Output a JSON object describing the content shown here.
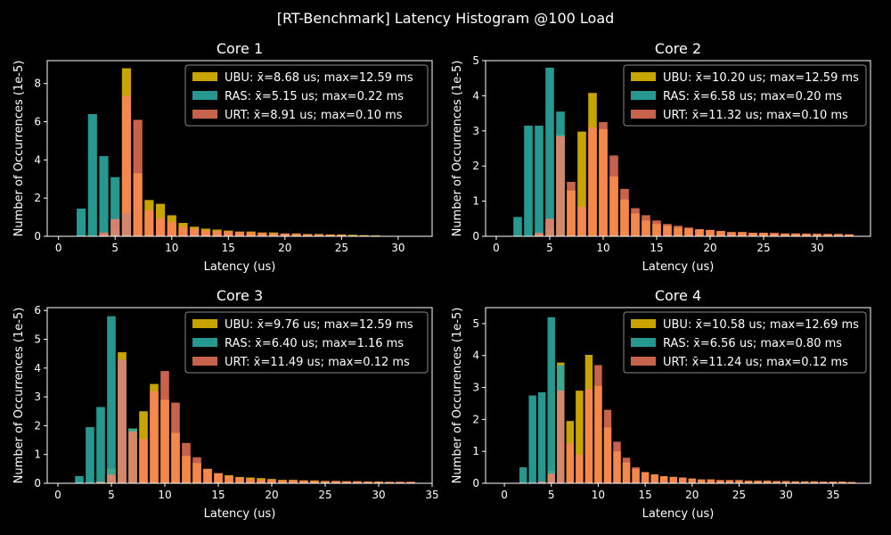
{
  "figure": {
    "title": "[RT-Benchmark] Latency Histogram @100 Load",
    "background": "#000000",
    "colors": {
      "UBU": "#c8a400",
      "RAS": "#2ba89e",
      "URT": "#ff7f61"
    }
  },
  "chart_data": [
    {
      "type": "bar",
      "title": "Core 1",
      "xlabel": "Latency (us)",
      "ylabel": "Number of Occurrences (1e-5)",
      "xlim": [
        -1,
        33
      ],
      "ylim": [
        0,
        9.2
      ],
      "xticks": [
        0,
        5,
        10,
        15,
        20,
        25,
        30
      ],
      "yticks": [
        0,
        2,
        4,
        6,
        8
      ],
      "legend_position": "top-right",
      "series": [
        {
          "name": "UBU: x̄=8.68 us; max=12.59 ms",
          "x": [
            4,
            5,
            6,
            7,
            8,
            9,
            10,
            11,
            12,
            13,
            14,
            15,
            16,
            17,
            18,
            19,
            20,
            21,
            22,
            23,
            24,
            25,
            26,
            27,
            28
          ],
          "values": [
            0.1,
            0.3,
            8.8,
            3.3,
            1.9,
            1.7,
            1.1,
            0.7,
            0.5,
            0.4,
            0.35,
            0.3,
            0.25,
            0.25,
            0.2,
            0.2,
            0.15,
            0.15,
            0.12,
            0.12,
            0.1,
            0.1,
            0.08,
            0.06,
            0.05
          ]
        },
        {
          "name": "RAS: x̄=5.15 us; max=0.22 ms",
          "x": [
            2,
            3,
            4,
            5,
            6
          ],
          "values": [
            1.45,
            6.4,
            4.2,
            3.1,
            1.2
          ]
        },
        {
          "name": "URT: x̄=8.91 us; max=0.10 ms",
          "x": [
            4,
            5,
            6,
            7,
            8,
            9,
            10,
            11,
            12,
            13,
            14,
            15,
            16,
            17,
            18,
            19,
            20,
            21,
            22,
            23,
            24,
            25
          ],
          "values": [
            0.2,
            0.9,
            7.35,
            6.1,
            1.35,
            0.95,
            0.75,
            0.5,
            0.38,
            0.3,
            0.28,
            0.25,
            0.22,
            0.2,
            0.18,
            0.15,
            0.14,
            0.12,
            0.1,
            0.09,
            0.08,
            0.07
          ]
        }
      ]
    },
    {
      "type": "bar",
      "title": "Core 2",
      "xlabel": "Latency (us)",
      "ylabel": "Number of Occurrences (1e-5)",
      "xlim": [
        -1,
        35
      ],
      "ylim": [
        0,
        5
      ],
      "xticks": [
        0,
        5,
        10,
        15,
        20,
        25,
        30
      ],
      "yticks": [
        0,
        1,
        2,
        3,
        4,
        5
      ],
      "legend_position": "top-right",
      "series": [
        {
          "name": "UBU: x̄=10.20 us; max=12.59 ms",
          "x": [
            4,
            5,
            6,
            7,
            8,
            9,
            10,
            11,
            12,
            13,
            14,
            15,
            16,
            17,
            18,
            19,
            20,
            21,
            22,
            23,
            24,
            25,
            26,
            27,
            28,
            29,
            30,
            31,
            32,
            33
          ],
          "values": [
            0.05,
            0.2,
            2.9,
            1.3,
            2.98,
            4.08,
            3.05,
            1.7,
            1.05,
            0.65,
            0.45,
            0.35,
            0.3,
            0.25,
            0.22,
            0.2,
            0.18,
            0.15,
            0.12,
            0.12,
            0.1,
            0.1,
            0.08,
            0.08,
            0.08,
            0.07,
            0.07,
            0.06,
            0.06,
            0.05
          ]
        },
        {
          "name": "RAS: x̄=6.58 us; max=0.20 ms",
          "x": [
            2,
            3,
            4,
            5,
            6
          ],
          "values": [
            0.55,
            3.15,
            3.15,
            4.8,
            3.55
          ]
        },
        {
          "name": "URT: x̄=11.32 us; max=0.10 ms",
          "x": [
            4,
            5,
            6,
            7,
            8,
            9,
            10,
            11,
            12,
            13,
            14,
            15,
            16,
            17,
            18,
            19,
            20,
            21,
            22,
            23,
            24,
            25,
            26,
            27,
            28,
            29,
            30,
            31,
            32,
            33
          ],
          "values": [
            0.1,
            0.5,
            2.85,
            1.55,
            0.85,
            3.1,
            3.25,
            2.3,
            1.35,
            0.8,
            0.6,
            0.45,
            0.35,
            0.3,
            0.25,
            0.2,
            0.18,
            0.15,
            0.12,
            0.12,
            0.1,
            0.1,
            0.1,
            0.08,
            0.08,
            0.08,
            0.07,
            0.07,
            0.07,
            0.06
          ]
        }
      ]
    },
    {
      "type": "bar",
      "title": "Core 3",
      "xlabel": "Latency (us)",
      "ylabel": "Number of Occurrences (1e-5)",
      "xlim": [
        -1,
        35
      ],
      "ylim": [
        0,
        6.1
      ],
      "xticks": [
        0,
        5,
        10,
        15,
        20,
        25,
        30,
        35
      ],
      "yticks": [
        0,
        1,
        2,
        3,
        4,
        5,
        6
      ],
      "legend_position": "top-right",
      "series": [
        {
          "name": "UBU: x̄=9.76 us; max=12.59 ms",
          "x": [
            4,
            5,
            6,
            7,
            8,
            9,
            10,
            11,
            12,
            13,
            14,
            15,
            16,
            17,
            18,
            19,
            20,
            21,
            22,
            23,
            24,
            25,
            26,
            27,
            28,
            29,
            30,
            31,
            32,
            33
          ],
          "values": [
            0.05,
            0.5,
            4.55,
            1.9,
            2.5,
            3.45,
            2.9,
            1.75,
            0.95,
            0.7,
            0.5,
            0.35,
            0.28,
            0.22,
            0.2,
            0.18,
            0.15,
            0.12,
            0.12,
            0.1,
            0.1,
            0.08,
            0.08,
            0.07,
            0.07,
            0.06,
            0.06,
            0.05,
            0.05,
            0.05
          ]
        },
        {
          "name": "RAS: x̄=6.40 us; max=1.16 ms",
          "x": [
            2,
            3,
            4,
            5,
            6,
            7
          ],
          "values": [
            0.25,
            1.95,
            2.65,
            5.8,
            4.3,
            1.9
          ]
        },
        {
          "name": "URT: x̄=11.49 us; max=0.12 ms",
          "x": [
            4,
            5,
            6,
            7,
            8,
            9,
            10,
            11,
            12,
            13,
            14,
            15,
            16,
            17,
            18,
            19,
            20,
            21,
            22,
            23,
            24,
            25,
            26,
            27,
            28,
            29,
            30,
            31,
            32,
            33
          ],
          "values": [
            0.05,
            0.3,
            4.3,
            1.8,
            1.55,
            3.2,
            3.9,
            2.8,
            1.4,
            0.9,
            0.5,
            0.35,
            0.25,
            0.2,
            0.15,
            0.12,
            0.12,
            0.1,
            0.1,
            0.1,
            0.08,
            0.08,
            0.08,
            0.07,
            0.07,
            0.06,
            0.06,
            0.05,
            0.05,
            0.05
          ]
        }
      ]
    },
    {
      "type": "bar",
      "title": "Core 4",
      "xlabel": "Latency (us)",
      "ylabel": "Number of Occurrences (1e-5)",
      "xlim": [
        -2,
        39
      ],
      "ylim": [
        0,
        5.5
      ],
      "xticks": [
        0,
        5,
        10,
        15,
        20,
        25,
        30,
        35
      ],
      "yticks": [
        0,
        1,
        2,
        3,
        4,
        5
      ],
      "legend_position": "top-right",
      "series": [
        {
          "name": "UBU: x̄=10.58 us; max=12.69 ms",
          "x": [
            4,
            5,
            6,
            7,
            8,
            9,
            10,
            11,
            12,
            13,
            14,
            15,
            16,
            17,
            18,
            19,
            20,
            21,
            22,
            23,
            24,
            25,
            26,
            27,
            28,
            29,
            30,
            31,
            32,
            33,
            34,
            35,
            36,
            37
          ],
          "values": [
            0.05,
            0.4,
            3.78,
            1.95,
            2.9,
            4.02,
            3.05,
            1.75,
            1.0,
            0.65,
            0.45,
            0.35,
            0.28,
            0.22,
            0.2,
            0.18,
            0.15,
            0.12,
            0.12,
            0.1,
            0.1,
            0.1,
            0.08,
            0.08,
            0.08,
            0.07,
            0.07,
            0.06,
            0.06,
            0.06,
            0.05,
            0.05,
            0.05,
            0.04
          ]
        },
        {
          "name": "RAS: x̄=6.56 us; max=0.80 ms",
          "x": [
            2,
            3,
            4,
            5,
            6
          ],
          "values": [
            0.5,
            2.75,
            2.85,
            5.2,
            3.7
          ]
        },
        {
          "name": "URT: x̄=11.24 us; max=0.12 ms",
          "x": [
            4,
            5,
            6,
            7,
            8,
            9,
            10,
            11,
            12,
            13,
            14,
            15,
            16,
            17,
            18,
            19,
            20,
            21,
            22,
            23,
            24,
            25,
            26,
            27,
            28,
            29,
            30,
            31,
            32,
            33,
            34,
            35,
            36,
            37
          ],
          "values": [
            0.05,
            0.3,
            2.9,
            1.25,
            0.9,
            2.95,
            3.7,
            2.3,
            1.3,
            0.8,
            0.5,
            0.35,
            0.28,
            0.22,
            0.2,
            0.18,
            0.15,
            0.12,
            0.12,
            0.1,
            0.1,
            0.1,
            0.08,
            0.08,
            0.08,
            0.07,
            0.07,
            0.06,
            0.06,
            0.06,
            0.05,
            0.05,
            0.05,
            0.04
          ]
        }
      ]
    }
  ]
}
